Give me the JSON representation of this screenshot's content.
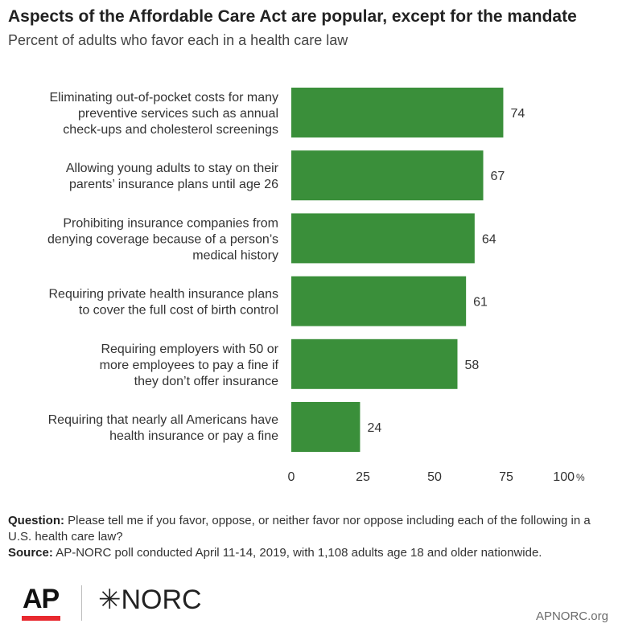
{
  "title": "Aspects of the Affordable Care Act are popular, except for the mandate",
  "subtitle": "Percent of adults who favor each in a health care law",
  "chart_data": {
    "type": "bar",
    "orientation": "horizontal",
    "categories": [
      [
        "Eliminating out-of-pocket costs for many",
        "preventive services such as annual",
        "check-ups and cholesterol screenings"
      ],
      [
        "Allowing young adults to stay on their",
        "parents’ insurance plans until age 26"
      ],
      [
        "Prohibiting insurance companies from",
        "denying coverage because of a person’s",
        "medical history"
      ],
      [
        "Requiring private health insurance plans",
        "to cover the full cost of birth control"
      ],
      [
        "Requiring employers with 50 or",
        "more employees to pay a fine if",
        "they don’t offer insurance"
      ],
      [
        "Requiring that nearly all Americans have",
        "health insurance or pay a fine"
      ]
    ],
    "values": [
      74,
      67,
      64,
      61,
      58,
      24
    ],
    "data_labels": [
      "74",
      "67",
      "64",
      "61",
      "58",
      "24"
    ],
    "xlim": [
      0,
      100
    ],
    "ticks": [
      0,
      25,
      50,
      75,
      100
    ],
    "tick_labels": [
      "0",
      "25",
      "50",
      "75",
      "100"
    ],
    "unit": "%",
    "bar_color": "#3a8f3a",
    "grid": false
  },
  "notes": {
    "question_label": "Question:",
    "question_text": "Please tell me if you favor, oppose, or neither favor nor oppose including each of the following in a U.S. health care law?",
    "source_label": "Source:",
    "source_text": "AP-NORC poll conducted April 11-14, 2019, with 1,108 adults age 18 and older nationwide."
  },
  "footer": {
    "ap_logo": "AP",
    "norc_logo": "✳NORC",
    "site": "APNORC.org",
    "ap_red": "#e8292f"
  }
}
